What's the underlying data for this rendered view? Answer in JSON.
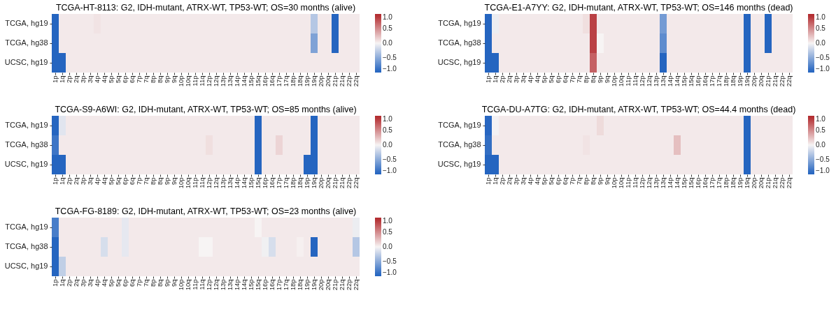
{
  "chart_data": [
    {
      "type": "heatmap",
      "title": "TCGA-HT-8113: G2, IDH-mutant, ATRX-WT, TP53-WT; OS=30 months (alive)",
      "categories": [
        "1p",
        "1q",
        "2p",
        "2q",
        "3p",
        "3q",
        "4p",
        "4q",
        "5p",
        "5q",
        "6p",
        "6q",
        "7p",
        "7q",
        "8p",
        "8q",
        "9p",
        "9q",
        "10p",
        "10q",
        "11p",
        "11q",
        "12p",
        "12q",
        "13p",
        "13q",
        "14p",
        "14q",
        "15p",
        "15q",
        "16p",
        "16q",
        "17p",
        "17q",
        "18p",
        "18q",
        "19p",
        "19q",
        "20p",
        "20q",
        "21p",
        "21q",
        "22p",
        "22q"
      ],
      "y_categories": [
        "TCGA, hg19",
        "TCGA, hg38",
        "UCSC, hg19"
      ],
      "clim": [
        -1,
        1
      ],
      "cticks": [
        {
          "value": -1,
          "label": "−1.0"
        },
        {
          "value": -0.5,
          "label": "−0.5"
        },
        {
          "value": 0,
          "label": "0.0"
        },
        {
          "value": 0.5,
          "label": "0.5"
        },
        {
          "value": 1,
          "label": "1.0"
        }
      ],
      "cells": [
        [
          -1,
          0.05,
          0.05,
          0.05,
          0.05,
          0.05,
          0.08,
          0.05,
          0.05,
          0.05,
          0.05,
          0.05,
          0.05,
          0.05,
          0.05,
          0.05,
          0.05,
          0.05,
          0.05,
          0.05,
          0.05,
          0.05,
          0.05,
          0.05,
          0.05,
          0.05,
          0.05,
          0.05,
          0.05,
          0.05,
          0.05,
          0.05,
          0.05,
          0.05,
          0.05,
          0.05,
          0.05,
          -0.3,
          0.05,
          0.05,
          -1,
          0.05,
          0.05,
          0.05
        ],
        [
          -1,
          0.05,
          0.05,
          0.05,
          0.05,
          0.05,
          0.05,
          0.05,
          0.05,
          0.05,
          0.05,
          0.05,
          0.05,
          0.05,
          0.05,
          0.05,
          0.05,
          0.05,
          0.05,
          0.05,
          0.05,
          0.05,
          0.05,
          0.05,
          0.05,
          0.05,
          0.05,
          0.05,
          0.05,
          0.05,
          0.05,
          0.05,
          0.05,
          0.05,
          0.05,
          0.05,
          0.05,
          -0.55,
          0.05,
          0.05,
          -1,
          0.05,
          0.05,
          0.05
        ],
        [
          -1,
          -1,
          0.05,
          0.05,
          0.05,
          0.05,
          0.05,
          0.05,
          0.05,
          0.05,
          0.05,
          0.05,
          0.05,
          0.05,
          0.05,
          0.05,
          0.05,
          0.05,
          0.05,
          0.05,
          0.05,
          0.05,
          0.05,
          0.05,
          0.05,
          0.05,
          0.05,
          0.05,
          0.05,
          0.05,
          0.05,
          0.05,
          0.05,
          0.05,
          0.05,
          0.05,
          0.05,
          0.05,
          0.05,
          0.05,
          0.05,
          0.05,
          0.05,
          0.05
        ]
      ]
    },
    {
      "type": "heatmap",
      "title": "TCGA-E1-A7YY: G2, IDH-mutant, ATRX-WT, TP53-WT; OS=146 months (dead)",
      "categories": [
        "1p",
        "1q",
        "2p",
        "2q",
        "3p",
        "3q",
        "4p",
        "4q",
        "5p",
        "5q",
        "6p",
        "6q",
        "7p",
        "7q",
        "8p",
        "8q",
        "9p",
        "9q",
        "10p",
        "10q",
        "11p",
        "11q",
        "12p",
        "12q",
        "13p",
        "13q",
        "14p",
        "14q",
        "15p",
        "15q",
        "16p",
        "16q",
        "17p",
        "17q",
        "18p",
        "18q",
        "19p",
        "19q",
        "20p",
        "20q",
        "21p",
        "21q",
        "22p",
        "22q"
      ],
      "y_categories": [
        "TCGA, hg19",
        "TCGA, hg38",
        "UCSC, hg19"
      ],
      "clim": [
        -1,
        1
      ],
      "cticks": [
        {
          "value": -1,
          "label": "−1.0"
        },
        {
          "value": -0.5,
          "label": "−0.5"
        },
        {
          "value": 0,
          "label": "0.0"
        },
        {
          "value": 0.5,
          "label": "0.5"
        },
        {
          "value": 1,
          "label": "1.0"
        }
      ],
      "cells": [
        [
          -1,
          -0.05,
          0.05,
          0.05,
          0.05,
          0.05,
          0.05,
          0.05,
          0.05,
          0.05,
          0.05,
          0.05,
          0.05,
          0.05,
          0.1,
          0.85,
          0.05,
          0.05,
          0.05,
          0.05,
          0.05,
          0.05,
          0.05,
          0.05,
          0.05,
          -0.6,
          0.05,
          0.05,
          0.05,
          0.05,
          0.05,
          0.05,
          0.05,
          0.05,
          0.05,
          0.05,
          0.05,
          -1,
          0.05,
          0.05,
          -1,
          0.05,
          0.05,
          0.05
        ],
        [
          -1,
          0.05,
          0.05,
          0.05,
          0.05,
          0.05,
          0.05,
          0.05,
          0.05,
          0.05,
          0.05,
          0.05,
          0.05,
          0.05,
          0.05,
          0.85,
          0,
          0.05,
          0.05,
          0.05,
          0.05,
          0.05,
          0.05,
          0.05,
          0.05,
          -0.7,
          0.05,
          0.05,
          0.05,
          0.05,
          0.05,
          0.05,
          0.05,
          0.05,
          0.05,
          0.05,
          0.05,
          -1,
          0.05,
          0.05,
          -1,
          0.05,
          0.05,
          0.05
        ],
        [
          -1,
          -1,
          0.05,
          0.05,
          0.05,
          0.05,
          0.05,
          0.05,
          0.05,
          0.05,
          0.05,
          0.05,
          0.05,
          0.05,
          0.05,
          0.7,
          0.05,
          0.05,
          0.05,
          0.05,
          0.05,
          0.05,
          0.05,
          0.05,
          0.05,
          -1,
          0.05,
          0.05,
          0.05,
          0.05,
          0.05,
          0.05,
          0.05,
          0.05,
          0.05,
          0.05,
          0.05,
          -1,
          0.05,
          0.05,
          0.05,
          0.05,
          0.05,
          0.05
        ]
      ]
    },
    {
      "type": "heatmap",
      "title": "TCGA-S9-A6WI: G2, IDH-mutant, ATRX-WT, TP53-WT; OS=85 months (alive)",
      "categories": [
        "1p",
        "1q",
        "2p",
        "2q",
        "3p",
        "3q",
        "4p",
        "4q",
        "5p",
        "5q",
        "6p",
        "6q",
        "7p",
        "7q",
        "8p",
        "8q",
        "9p",
        "9q",
        "10p",
        "10q",
        "11p",
        "11q",
        "12p",
        "12q",
        "13p",
        "13q",
        "14p",
        "14q",
        "15p",
        "15q",
        "16p",
        "16q",
        "17p",
        "17q",
        "18p",
        "18q",
        "19p",
        "19q",
        "20p",
        "20q",
        "21p",
        "21q",
        "22p",
        "22q"
      ],
      "y_categories": [
        "TCGA, hg19",
        "TCGA, hg38",
        "UCSC, hg19"
      ],
      "clim": [
        -1,
        1
      ],
      "cticks": [
        {
          "value": -1,
          "label": "−1.0"
        },
        {
          "value": -0.5,
          "label": "−0.5"
        },
        {
          "value": 0,
          "label": "0.0"
        },
        {
          "value": 0.5,
          "label": "0.5"
        },
        {
          "value": 1,
          "label": "1.0"
        }
      ],
      "cells": [
        [
          -1,
          -0.1,
          0.05,
          0.05,
          0.05,
          0.05,
          0.05,
          0.05,
          0.05,
          0.05,
          0.05,
          0.05,
          0.05,
          0.05,
          0.05,
          0.05,
          0.05,
          0.05,
          0.05,
          0.05,
          0.05,
          0.05,
          0.05,
          0.05,
          0.05,
          0.05,
          0.05,
          0.05,
          0.05,
          -1,
          0.05,
          0.05,
          0.05,
          0.05,
          0.05,
          0.05,
          0.05,
          -1,
          0.05,
          0.05,
          0.05,
          0.05,
          0.05,
          0.05
        ],
        [
          -0.85,
          0.05,
          0.05,
          0.05,
          0.05,
          0.05,
          0.05,
          0.05,
          0.05,
          0.05,
          0.05,
          0.05,
          0.05,
          0.05,
          0.05,
          0.05,
          0.05,
          0.05,
          0.05,
          0.05,
          0.05,
          0.05,
          0.1,
          0.05,
          0.05,
          0.05,
          0.05,
          0.05,
          0.05,
          -1,
          0.05,
          0.05,
          0.15,
          0.05,
          0.05,
          0.05,
          0.05,
          -1,
          0.05,
          0.05,
          0.05,
          0.05,
          0.05,
          0.05
        ],
        [
          -1,
          -1,
          0.05,
          0.05,
          0.05,
          0.05,
          0.05,
          0.05,
          0.05,
          0.05,
          0.05,
          0.05,
          0.05,
          0.05,
          0.05,
          0.05,
          0.05,
          0.05,
          0.05,
          0.05,
          0.05,
          0.05,
          0.05,
          0.05,
          0.05,
          0.05,
          0.05,
          0.05,
          0.05,
          -1,
          0.05,
          0.05,
          0.05,
          0.05,
          0.05,
          0.05,
          -1,
          -1,
          0.05,
          0.05,
          0.05,
          0.05,
          0.05,
          0.05
        ]
      ]
    },
    {
      "type": "heatmap",
      "title": "TCGA-DU-A7TG: G2, IDH-mutant, ATRX-WT, TP53-WT; OS=44.4 months (dead)",
      "categories": [
        "1p",
        "1q",
        "2p",
        "2q",
        "3p",
        "3q",
        "4p",
        "4q",
        "5p",
        "5q",
        "6p",
        "6q",
        "7p",
        "7q",
        "8p",
        "8q",
        "9p",
        "9q",
        "10p",
        "10q",
        "11p",
        "11q",
        "12p",
        "12q",
        "13p",
        "13q",
        "14p",
        "14q",
        "15p",
        "15q",
        "16p",
        "16q",
        "17p",
        "17q",
        "18p",
        "18q",
        "19p",
        "19q",
        "20p",
        "20q",
        "21p",
        "21q",
        "22p",
        "22q"
      ],
      "y_categories": [
        "TCGA, hg19",
        "TCGA, hg38",
        "UCSC, hg19"
      ],
      "clim": [
        -1,
        1
      ],
      "cticks": [
        {
          "value": -1,
          "label": "−1.0"
        },
        {
          "value": -0.5,
          "label": "−0.5"
        },
        {
          "value": 0,
          "label": "0.0"
        },
        {
          "value": 0.5,
          "label": "0.5"
        },
        {
          "value": 1,
          "label": "1.0"
        }
      ],
      "cells": [
        [
          -0.95,
          -0.02,
          0.05,
          0.05,
          0.05,
          0.05,
          0.05,
          0.05,
          0.05,
          0.05,
          0.05,
          0.05,
          0.05,
          0.05,
          0.05,
          0.05,
          0.12,
          0.05,
          0.05,
          0.05,
          0.05,
          0.05,
          0.05,
          0.05,
          0.05,
          0.05,
          0.05,
          0.05,
          0.05,
          0.05,
          0.05,
          0.05,
          0.05,
          0.05,
          0.05,
          0.05,
          0.05,
          -1,
          0.05,
          0.05,
          0.05,
          0.05,
          0.05,
          0.05
        ],
        [
          -0.9,
          0.05,
          0.05,
          0.05,
          0.05,
          0.05,
          0.05,
          0.05,
          0.05,
          0.05,
          0.05,
          0.05,
          0.05,
          0.05,
          0.08,
          0.05,
          0.05,
          0.05,
          0.05,
          0.05,
          0.05,
          0.05,
          0.05,
          0.05,
          0.05,
          0.05,
          0.05,
          0.25,
          0.05,
          0.05,
          0.05,
          0.05,
          0.05,
          0.05,
          0.05,
          0.05,
          0.05,
          -1,
          0.05,
          0.05,
          0.05,
          0.05,
          0.05,
          0.05
        ],
        [
          -1,
          -1,
          0.05,
          0.05,
          0.05,
          0.05,
          0.05,
          0.05,
          0.05,
          0.05,
          0.05,
          0.05,
          0.05,
          0.05,
          0.05,
          0.05,
          0.05,
          0.05,
          0.05,
          0.05,
          0.05,
          0.05,
          0.05,
          0.05,
          0.05,
          0.05,
          0.05,
          0.05,
          0.05,
          0.05,
          0.05,
          0.05,
          0.05,
          0.05,
          0.05,
          0.05,
          0.05,
          -1,
          0.05,
          0.05,
          0.05,
          0.05,
          0.05,
          0.05
        ]
      ]
    },
    {
      "type": "heatmap",
      "title": "TCGA-FG-8189: G2, IDH-mutant, ATRX-WT, TP53-WT; OS=23 months (alive)",
      "categories": [
        "1p",
        "1q",
        "2p",
        "2q",
        "3p",
        "3q",
        "4p",
        "4q",
        "5p",
        "5q",
        "6p",
        "6q",
        "7p",
        "7q",
        "8p",
        "8q",
        "9p",
        "9q",
        "10p",
        "10q",
        "11p",
        "11q",
        "12p",
        "12q",
        "13p",
        "13q",
        "14p",
        "14q",
        "15p",
        "15q",
        "16p",
        "16q",
        "17p",
        "17q",
        "18p",
        "18q",
        "19p",
        "19q",
        "20p",
        "20q",
        "21p",
        "21q",
        "22p",
        "22q"
      ],
      "y_categories": [
        "TCGA, hg19",
        "TCGA, hg38",
        "UCSC, hg19"
      ],
      "clim": [
        -1,
        1
      ],
      "cticks": [
        {
          "value": -1,
          "label": "−1.0"
        },
        {
          "value": -0.5,
          "label": "−0.5"
        },
        {
          "value": 0,
          "label": "0.0"
        },
        {
          "value": 0.5,
          "label": "0.5"
        },
        {
          "value": 1,
          "label": "1.0"
        }
      ],
      "cells": [
        [
          -0.8,
          0.05,
          0.05,
          0.05,
          0.05,
          0.05,
          0.05,
          0.05,
          0.05,
          0.05,
          -0.08,
          0.05,
          0.05,
          0.05,
          0.05,
          0.05,
          0.05,
          0.05,
          0.05,
          0.05,
          0.05,
          0.05,
          0.05,
          0.05,
          0.05,
          0.05,
          0.05,
          0.05,
          0.05,
          0,
          0.05,
          0.05,
          0.05,
          0.05,
          0.05,
          0.05,
          0.05,
          0.05,
          0.05,
          0.05,
          0.05,
          0.05,
          0.05,
          -0.05
        ],
        [
          -1,
          0.05,
          0.05,
          0.05,
          0.05,
          0.05,
          0.05,
          -0.15,
          0.05,
          0.05,
          -0.08,
          0.05,
          0.05,
          0.05,
          0.05,
          0.05,
          0.05,
          0.05,
          0.05,
          0.05,
          0.05,
          0,
          0,
          0.05,
          0.05,
          0.05,
          0.05,
          0.05,
          0.05,
          0.05,
          -0.03,
          -0.15,
          0.05,
          0.05,
          0.05,
          0.02,
          0.05,
          -1,
          0.05,
          0.05,
          0.05,
          0.05,
          0.05,
          -0.3
        ],
        [
          -1,
          -0.25,
          0.05,
          0.05,
          0.05,
          0.05,
          0.05,
          0.05,
          0.05,
          0.05,
          0.05,
          0.05,
          0.05,
          0.05,
          0.05,
          0.05,
          0.05,
          0.05,
          0.05,
          0.05,
          0.05,
          0.05,
          0.05,
          0.05,
          0.05,
          0.05,
          0.05,
          0.05,
          0.05,
          0.05,
          0.05,
          0.05,
          0.05,
          0.05,
          0.05,
          0.05,
          0.05,
          0.05,
          0.05,
          0.05,
          0.05,
          0.05,
          0.05,
          0.05
        ]
      ]
    }
  ]
}
